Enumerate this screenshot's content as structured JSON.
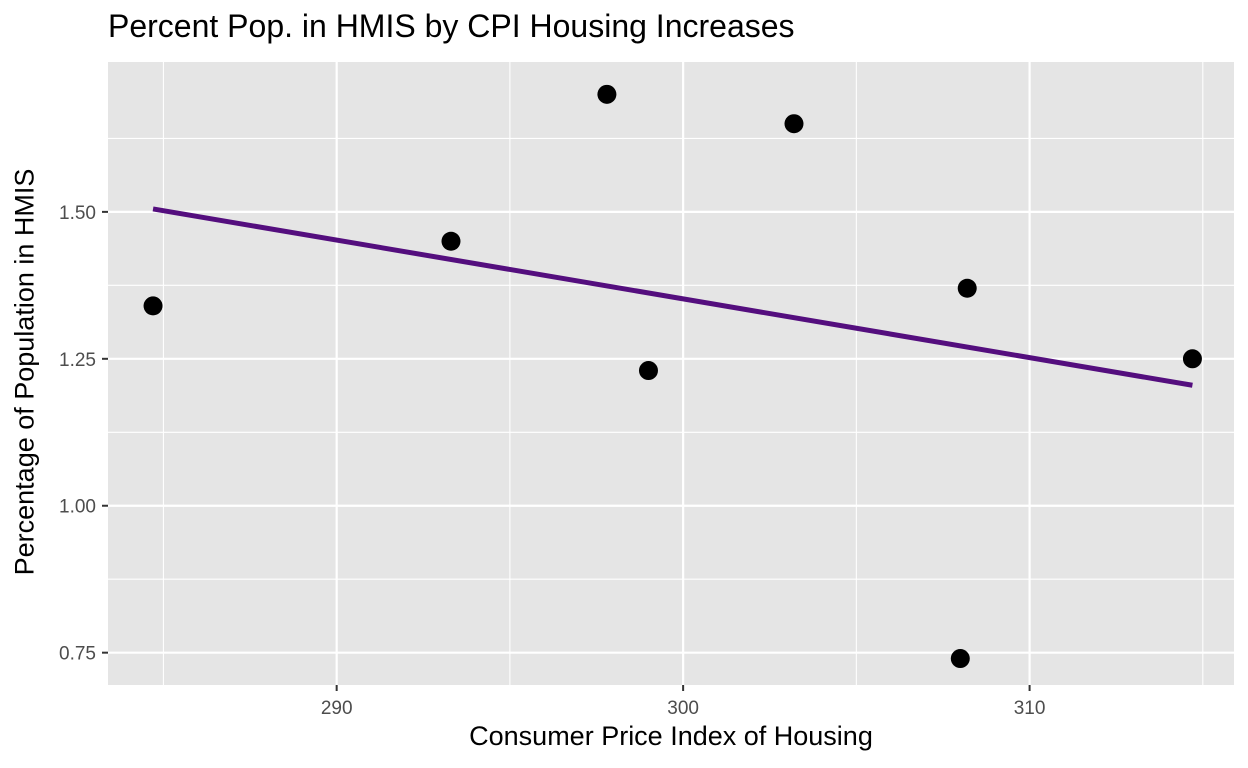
{
  "chart_data": {
    "type": "scatter",
    "title": "Percent Pop. in HMIS by CPI Housing Increases",
    "xlabel": "Consumer Price Index of Housing",
    "ylabel": "Percentage of Population in HMIS",
    "xlim": [
      283.4,
      315.9
    ],
    "ylim": [
      0.695,
      1.755
    ],
    "x_ticks": [
      290,
      300,
      310
    ],
    "x_tick_labels": [
      "290",
      "300",
      "310"
    ],
    "x_minor_ticks": [
      285,
      295,
      305,
      315
    ],
    "y_ticks": [
      0.75,
      1.0,
      1.25,
      1.5
    ],
    "y_tick_labels": [
      "0.75",
      "1.00",
      "1.25",
      "1.50"
    ],
    "y_minor_ticks": [
      0.875,
      1.125,
      1.375,
      1.625
    ],
    "grid": true,
    "legend": "none",
    "points": [
      {
        "x": 284.7,
        "y": 1.34
      },
      {
        "x": 293.3,
        "y": 1.45
      },
      {
        "x": 297.8,
        "y": 1.7
      },
      {
        "x": 299.0,
        "y": 1.23
      },
      {
        "x": 303.2,
        "y": 1.65
      },
      {
        "x": 308.0,
        "y": 0.74
      },
      {
        "x": 308.2,
        "y": 1.37
      },
      {
        "x": 314.7,
        "y": 1.25
      }
    ],
    "trend_line": {
      "start": {
        "x": 284.7,
        "y": 1.505
      },
      "end": {
        "x": 314.7,
        "y": 1.205
      }
    },
    "colors": {
      "panel": "#e5e5e5",
      "grid": "#ffffff",
      "point": "#000000",
      "trend": "#540e7e"
    }
  }
}
